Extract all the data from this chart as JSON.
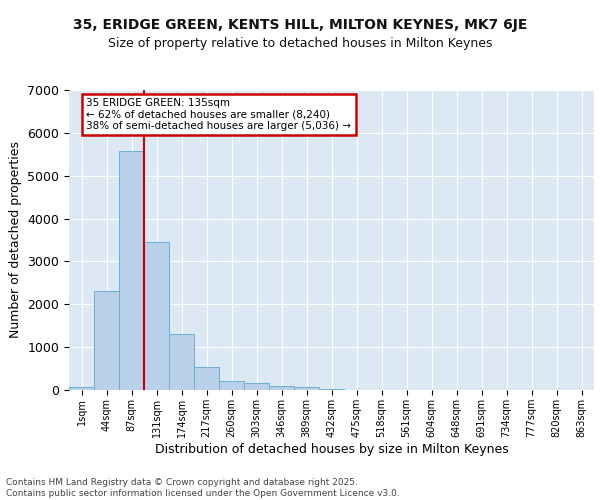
{
  "title_line1": "35, ERIDGE GREEN, KENTS HILL, MILTON KEYNES, MK7 6JE",
  "title_line2": "Size of property relative to detached houses in Milton Keynes",
  "xlabel": "Distribution of detached houses by size in Milton Keynes",
  "ylabel": "Number of detached properties",
  "categories": [
    "1sqm",
    "44sqm",
    "87sqm",
    "131sqm",
    "174sqm",
    "217sqm",
    "260sqm",
    "303sqm",
    "346sqm",
    "389sqm",
    "432sqm",
    "475sqm",
    "518sqm",
    "561sqm",
    "604sqm",
    "648sqm",
    "691sqm",
    "734sqm",
    "777sqm",
    "820sqm",
    "863sqm"
  ],
  "values": [
    60,
    2300,
    5580,
    3450,
    1310,
    530,
    210,
    175,
    100,
    65,
    30,
    10,
    5,
    3,
    2,
    1,
    1,
    1,
    0,
    0,
    0
  ],
  "bar_color": "#b8d0e8",
  "bar_edge_color": "#6baed6",
  "annotation_text": "35 ERIDGE GREEN: 135sqm\n← 62% of detached houses are smaller (8,240)\n38% of semi-detached houses are larger (5,036) →",
  "annotation_box_facecolor": "#ffffff",
  "annotation_box_edgecolor": "#cc0000",
  "vline_color": "#cc0000",
  "bg_color": "#dce9f5",
  "grid_color": "#ffffff",
  "footer_line1": "Contains HM Land Registry data © Crown copyright and database right 2025.",
  "footer_line2": "Contains public sector information licensed under the Open Government Licence v3.0.",
  "ylim_max": 7000,
  "yticks": [
    0,
    1000,
    2000,
    3000,
    4000,
    5000,
    6000,
    7000
  ],
  "vline_xindex": 2.5
}
